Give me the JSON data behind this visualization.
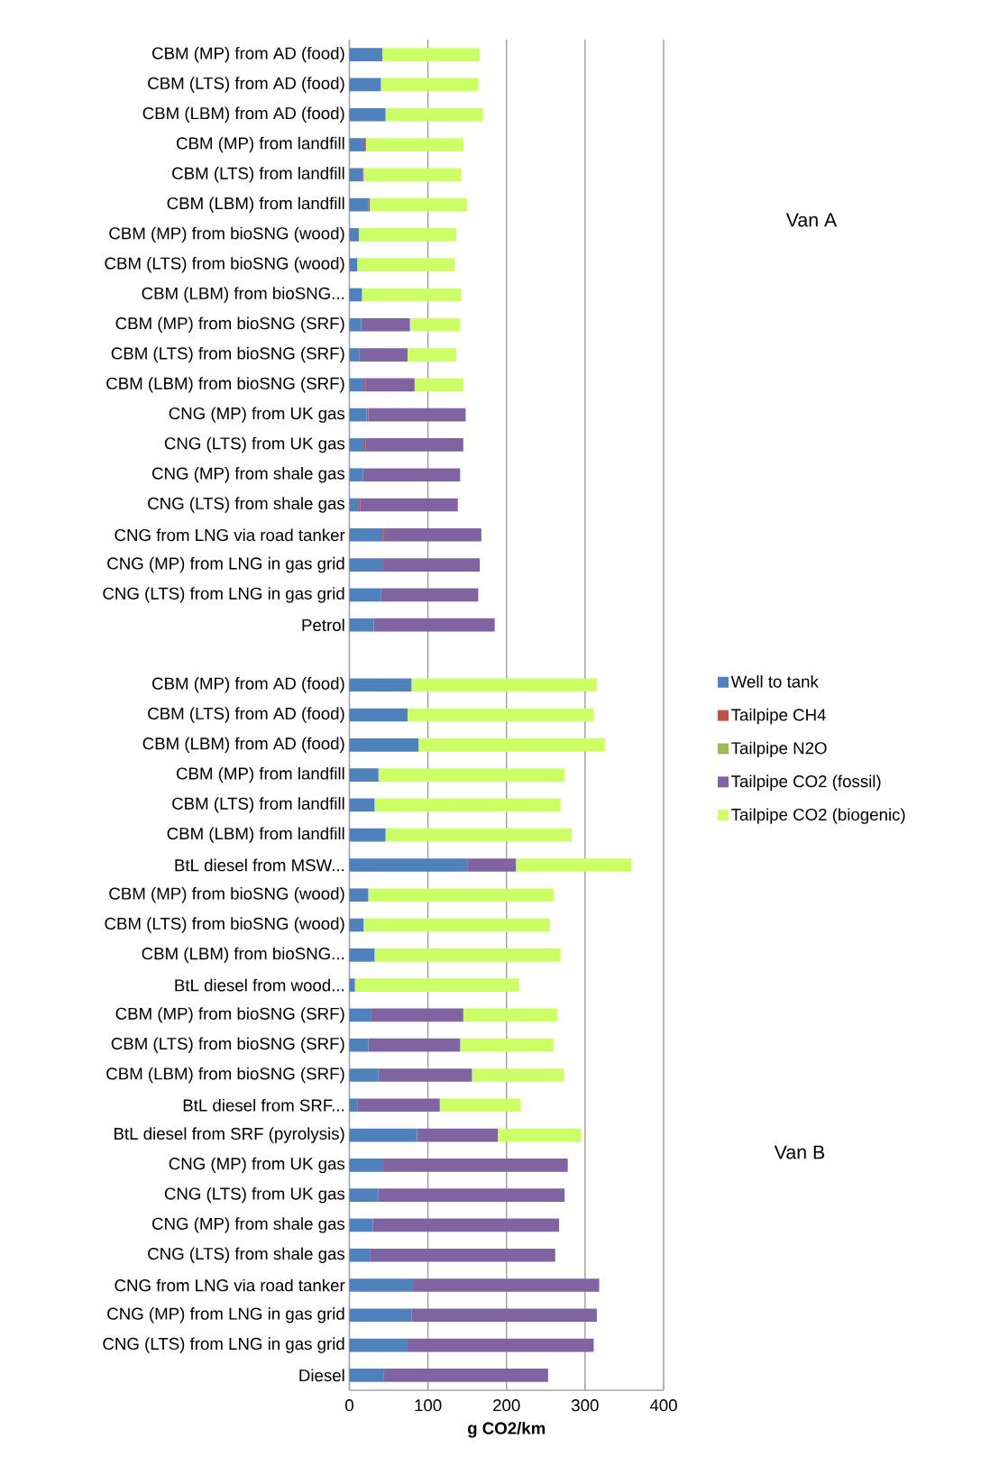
{
  "chart_data": {
    "type": "bar",
    "orientation": "horizontal",
    "stacked": true,
    "xlabel": "**g CO2/km**",
    "categories": [
      "CBM (MP) from AD (food)",
      "CBM (LTS) from AD (food)",
      "CBM (LBM) from AD (food)",
      "CBM (MP) from landfill",
      "CBM (LTS) from landfill",
      "CBM (LBM) from landfill",
      "CBM (MP) from bioSNG (wood)",
      "CBM (LTS) from bioSNG (wood)",
      "CBM (LBM) from bioSNG...",
      "CBM (MP) from bioSNG (SRF)",
      "CBM (LTS) from bioSNG (SRF)",
      "CBM (LBM) from bioSNG (SRF)",
      "CNG (MP) from UK gas",
      "CNG (LTS) from UK gas",
      "CNG (MP) from shale gas",
      "CNG (LTS) from shale gas",
      "CNG from LNG via road tanker",
      "CNG (MP) from LNG in gas grid",
      "CNG (LTS) from LNG in gas grid",
      "Petrol",
      null,
      "CBM (MP) from AD (food)",
      "CBM (LTS) from AD (food)",
      "CBM (LBM) from AD (food)",
      "CBM (MP) from landfill",
      "CBM (LTS) from landfill",
      "CBM (LBM) from landfill",
      "BtL diesel from MSW...",
      "CBM (MP) from bioSNG (wood)",
      "CBM (LTS) from bioSNG (wood)",
      "CBM (LBM) from bioSNG...",
      "BtL diesel from wood...",
      "CBM (MP) from bioSNG (SRF)",
      "CBM (LTS) from bioSNG (SRF)",
      "CBM (LBM) from bioSNG (SRF)",
      "BtL diesel from SRF...",
      "BtL diesel from SRF (pyrolysis)",
      "CNG (MP) from UK gas",
      "CNG (LTS) from UK gas",
      "CNG (MP) from shale gas",
      "CNG (LTS) from shale gas",
      "CNG from LNG via road tanker",
      "CNG (MP) from LNG in gas grid",
      "CNG (LTS) from LNG in gas grid",
      "Diesel"
    ],
    "series": [
      {
        "name": "Well to tank",
        "color": "#4f81bd",
        "values": [
          42,
          40,
          46,
          19,
          17,
          24,
          12,
          10,
          16,
          15,
          13,
          19,
          22,
          19,
          17,
          12,
          42,
          42,
          40,
          31,
          null,
          79,
          74,
          88,
          37,
          32,
          46,
          150,
          24,
          18,
          32,
          7,
          28,
          24,
          37,
          10,
          86,
          42,
          37,
          30,
          26,
          81,
          79,
          74,
          44
        ]
      },
      {
        "name": "Tailpipe CH4",
        "color": "#c0504d",
        "values": [
          0,
          0,
          0,
          2,
          1,
          2,
          0,
          0,
          0,
          0,
          0,
          2,
          2,
          2,
          0,
          2,
          2,
          0,
          0,
          0,
          null,
          0,
          0,
          0,
          0,
          0,
          0,
          0,
          0,
          0,
          0,
          0,
          0,
          0,
          0,
          0,
          0,
          0,
          0,
          0,
          0,
          0,
          0,
          0,
          0
        ]
      },
      {
        "name": "Tailpipe N2O",
        "color": "#9bbb59",
        "values": [
          0,
          0,
          0,
          0,
          0,
          0,
          0,
          0,
          0,
          0,
          0,
          0,
          0,
          0,
          0,
          0,
          0,
          0,
          0,
          0,
          null,
          0,
          0,
          0,
          0,
          0,
          0,
          0,
          0,
          0,
          0,
          0,
          0,
          0,
          0,
          0,
          0,
          0,
          0,
          0,
          0,
          0,
          0,
          0,
          0
        ]
      },
      {
        "name": "Tailpipe CO2 (fossil)",
        "color": "#8064a2",
        "values": [
          0,
          0,
          0,
          0,
          0,
          0,
          0,
          0,
          0,
          62,
          61,
          62,
          124,
          124,
          124,
          124,
          124,
          124,
          124,
          154,
          null,
          0,
          0,
          0,
          0,
          0,
          0,
          62,
          0,
          0,
          0,
          0,
          117,
          117,
          119,
          105,
          103,
          236,
          237,
          237,
          236,
          237,
          236,
          237,
          209
        ]
      },
      {
        "name": "Tailpipe CO2 (biogenic)",
        "color": "#ccff66",
        "values": [
          124,
          124,
          124,
          124,
          124,
          124,
          124,
          124,
          126,
          64,
          62,
          62,
          0,
          0,
          0,
          0,
          0,
          0,
          0,
          0,
          null,
          236,
          237,
          237,
          237,
          237,
          237,
          147,
          236,
          237,
          237,
          209,
          120,
          119,
          117,
          103,
          106,
          0,
          0,
          0,
          0,
          0,
          0,
          0,
          0
        ]
      }
    ],
    "xlim": [
      0,
      400
    ],
    "xticks": [
      0,
      100,
      200,
      300,
      400
    ],
    "grid": "x",
    "legend": "right",
    "annotations": [
      "Van A",
      "Van B"
    ]
  }
}
